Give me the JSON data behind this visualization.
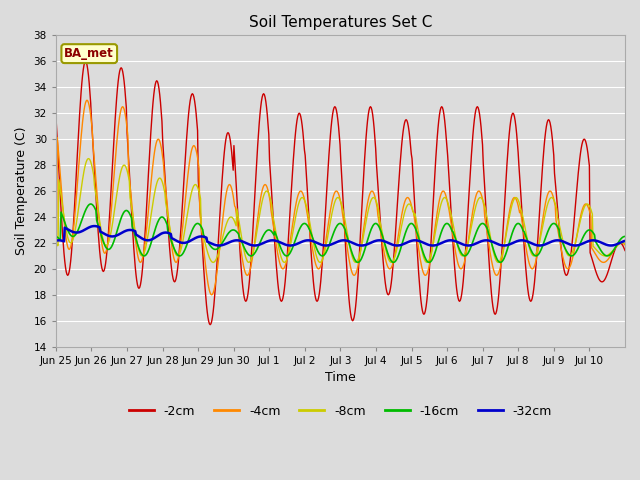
{
  "title": "Soil Temperatures Set C",
  "xlabel": "Time",
  "ylabel": "Soil Temperature (C)",
  "ylim": [
    14,
    38
  ],
  "yticks": [
    14,
    16,
    18,
    20,
    22,
    24,
    26,
    28,
    30,
    32,
    34,
    36,
    38
  ],
  "plot_bg": "#dcdcdc",
  "fig_bg": "#dcdcdc",
  "legend_label": "BA_met",
  "legend_bg": "#ffffcc",
  "legend_border": "#999900",
  "series_colors": [
    "#cc0000",
    "#ff8800",
    "#cccc00",
    "#00bb00",
    "#0000cc"
  ],
  "series_labels": [
    "-2cm",
    "-4cm",
    "-8cm",
    "-16cm",
    "-32cm"
  ],
  "series_lw": [
    1.0,
    1.0,
    1.0,
    1.2,
    1.8
  ],
  "tick_labels": [
    "Jun 25",
    "Jun 26",
    "Jun 27",
    "Jun 28",
    "Jun 29",
    "Jun 30",
    "Jul 1",
    "Jul 2",
    "Jul 3",
    "Jul 4",
    "Jul 5",
    "Jul 6",
    "Jul 7",
    "Jul 8",
    "Jul 9",
    "Jul 10"
  ],
  "n_days": 16,
  "points_per_day": 48,
  "peaks_2": [
    36.0,
    35.5,
    34.5,
    33.5,
    30.5,
    33.5,
    32.0,
    32.5,
    32.5,
    31.5,
    32.5,
    32.5,
    32.0,
    31.5,
    30.0,
    22.0
  ],
  "mins_2": [
    19.5,
    19.8,
    18.5,
    19.0,
    15.7,
    17.5,
    17.5,
    17.5,
    16.0,
    18.0,
    16.5,
    17.5,
    16.5,
    17.5,
    19.5,
    19.0
  ],
  "peaks_4": [
    33.0,
    32.5,
    30.0,
    29.5,
    26.5,
    26.5,
    26.0,
    26.0,
    26.0,
    25.5,
    26.0,
    26.0,
    25.5,
    26.0,
    25.0,
    22.0
  ],
  "mins_4": [
    21.5,
    21.2,
    20.5,
    20.5,
    18.0,
    19.5,
    20.0,
    20.0,
    19.5,
    20.0,
    19.5,
    20.0,
    19.5,
    20.0,
    20.0,
    20.5
  ],
  "peaks_8": [
    28.5,
    28.0,
    27.0,
    26.5,
    24.0,
    26.0,
    25.5,
    25.5,
    25.5,
    25.0,
    25.5,
    25.5,
    25.5,
    25.5,
    25.0,
    22.0
  ],
  "mins_8": [
    22.0,
    21.8,
    21.0,
    21.0,
    20.5,
    20.5,
    20.5,
    20.5,
    20.5,
    20.5,
    20.5,
    21.0,
    20.5,
    21.0,
    21.0,
    21.0
  ],
  "peaks_16": [
    25.0,
    24.5,
    24.0,
    23.5,
    23.0,
    23.0,
    23.5,
    23.5,
    23.5,
    23.5,
    23.5,
    23.5,
    23.5,
    23.5,
    23.0,
    22.5
  ],
  "mins_16": [
    22.5,
    21.5,
    21.0,
    21.0,
    21.5,
    21.0,
    21.0,
    21.0,
    20.5,
    20.5,
    20.5,
    21.0,
    20.5,
    21.0,
    21.0,
    21.0
  ],
  "peaks_32": [
    23.3,
    23.0,
    22.8,
    22.5,
    22.2,
    22.2,
    22.2,
    22.2,
    22.2,
    22.2,
    22.2,
    22.2,
    22.2,
    22.2,
    22.2,
    22.2
  ],
  "mins_32": [
    22.8,
    22.5,
    22.2,
    22.0,
    21.8,
    21.8,
    21.8,
    21.8,
    21.8,
    21.8,
    21.8,
    21.8,
    21.8,
    21.8,
    21.8,
    21.8
  ],
  "phase_lags": [
    0,
    2,
    4,
    7,
    12
  ]
}
